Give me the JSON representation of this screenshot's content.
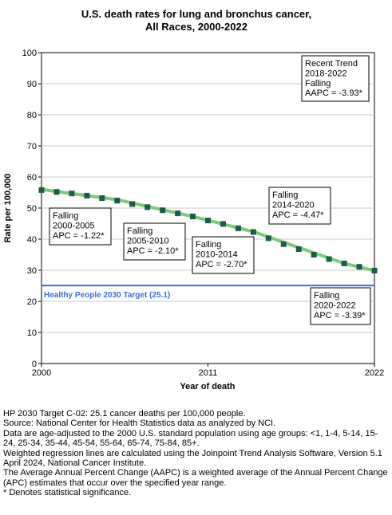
{
  "chart_data": {
    "type": "line",
    "title": [
      "U.S. death rates for lung and bronchus cancer,",
      "All Races,  2000-2022"
    ],
    "xlabel": "Year of death",
    "ylabel": "Rate per 100,000",
    "xlim": [
      2000,
      2022
    ],
    "ylim": [
      0,
      100
    ],
    "x_ticks": [
      "2000",
      "2011",
      "2022"
    ],
    "y_ticks": [
      "0",
      "10",
      "20",
      "30",
      "40",
      "50",
      "60",
      "70",
      "80",
      "90",
      "100"
    ],
    "grid": "horizontal",
    "series": [
      {
        "color": "#1a5c47",
        "x": [
          2000,
          2001,
          2002,
          2003,
          2004,
          2005,
          2006,
          2007,
          2008,
          2009,
          2010,
          2011,
          2012,
          2013,
          2014,
          2015,
          2016,
          2017,
          2018,
          2019,
          2020,
          2021,
          2022
        ],
        "y": [
          55.8,
          55.2,
          54.7,
          54.0,
          53.2,
          52.4,
          51.3,
          50.3,
          49.3,
          48.3,
          47.3,
          46.0,
          44.9,
          43.5,
          42.3,
          40.3,
          38.4,
          36.8,
          35.0,
          33.6,
          32.2,
          31.1,
          29.9
        ]
      }
    ],
    "fitted_line": {
      "color": "#7ec87a",
      "x": [
        2000,
        2005,
        2010,
        2014,
        2020,
        2022
      ],
      "y": [
        56.0,
        52.7,
        47.3,
        42.4,
        32.2,
        29.9
      ]
    },
    "target_line": {
      "value": 25.1,
      "label": "Healthy People 2030 Target (25.1)",
      "color": "#3b6fd8"
    },
    "annotations": [
      {
        "lines": [
          "Recent Trend",
          "2018-2022",
          "Falling",
          "AAPC = -3.93*"
        ]
      },
      {
        "lines": [
          "Falling",
          "2000-2005",
          "APC = -1.22*"
        ]
      },
      {
        "lines": [
          "Falling",
          "2005-2010",
          "APC = -2.10*"
        ]
      },
      {
        "lines": [
          "Falling",
          "2010-2014",
          "APC = -2.70*"
        ]
      },
      {
        "lines": [
          "Falling",
          "2014-2020",
          "APC = -4.47*"
        ]
      },
      {
        "lines": [
          "Falling",
          "2020-2022",
          "APC = -3.39*"
        ]
      }
    ]
  },
  "footer": [
    "HP 2030 Target C-02: 25.1 cancer deaths per 100,000 people.",
    "Source: National Center for Health Statistics data as analyzed by NCI.",
    "Data are age-adjusted to the 2000 U.S. standard population using age groups: <1, 1-4, 5-14, 15-24, 25-34, 35-44, 45-54, 55-64, 65-74, 75-84, 85+.",
    "Weighted regression lines are calculated using the Joinpoint Trend Analysis Software, Version 5.1 April 2024, National Cancer Institute.",
    "The Average Annual Percent Change (AAPC) is a weighted average of the Annual Percent Change (APC) estimates that occur over the specified year range.",
    "* Denotes statistical significance."
  ]
}
